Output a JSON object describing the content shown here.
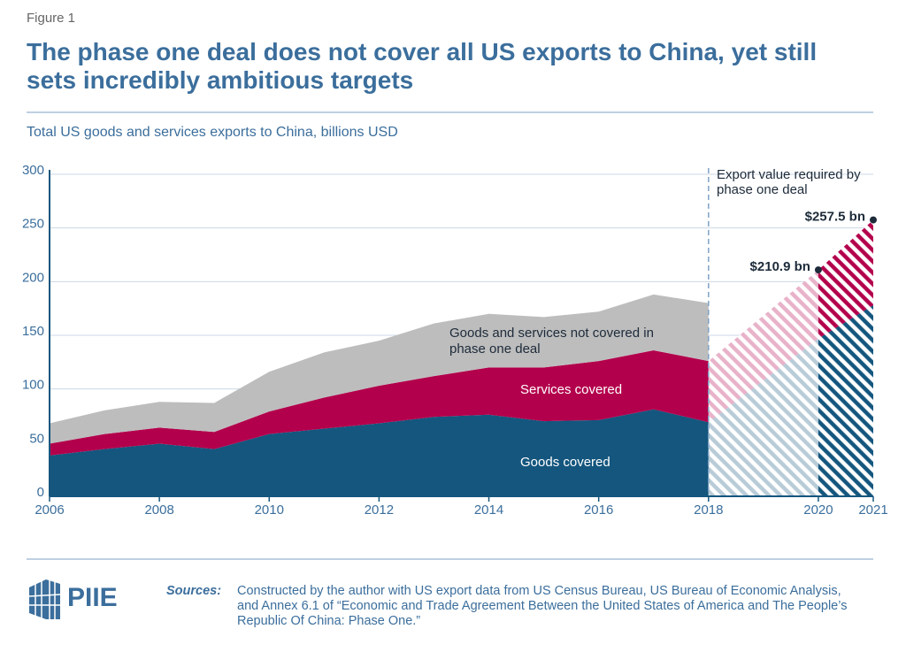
{
  "figure_label": "Figure 1",
  "chart_data": {
    "type": "area",
    "title": "The phase one deal does not cover all US exports to China, yet still sets incredibly ambitious targets",
    "subtitle": "Total US goods and services exports to China, billions USD",
    "x": [
      2006,
      2007,
      2008,
      2009,
      2010,
      2011,
      2012,
      2013,
      2014,
      2015,
      2016,
      2017,
      2018
    ],
    "series": [
      {
        "name": "Goods covered",
        "color": "#14567e",
        "values": [
          38,
          44,
          49,
          44,
          58,
          63,
          68,
          74,
          76,
          70,
          71,
          81,
          69
        ]
      },
      {
        "name": "Services covered",
        "color": "#b3004c",
        "values": [
          11,
          14,
          15,
          16,
          21,
          29,
          35,
          38,
          44,
          50,
          55,
          55,
          57
        ]
      },
      {
        "name": "Goods and services not covered in phase one deal",
        "color": "#bdbdbd",
        "values": [
          19,
          22,
          24,
          27,
          37,
          42,
          42,
          49,
          50,
          47,
          46,
          52,
          54
        ]
      }
    ],
    "projection": {
      "label": "Export value required by phase one deal",
      "x": [
        2018,
        2020,
        2021
      ],
      "series": [
        {
          "color": "#14567e",
          "values": [
            69,
            147,
            178
          ]
        },
        {
          "color": "#b3004c",
          "values": [
            57,
            63.9,
            79.5
          ]
        }
      ],
      "totals": {
        "x": [
          2020,
          2021
        ],
        "values": [
          210.9,
          257.5
        ],
        "value_labels": [
          "$210.9 bn",
          "$257.5 bn"
        ]
      }
    },
    "xlim": [
      2006,
      2021
    ],
    "ylim": [
      0,
      300
    ],
    "xticks": [
      2006,
      2008,
      2010,
      2012,
      2014,
      2016,
      2018,
      2020,
      2021
    ],
    "yticks": [
      0,
      50,
      100,
      150,
      200,
      250,
      300
    ],
    "grid": true
  },
  "logo": "PIIE",
  "sources_label": "Sources:",
  "sources": "Constructed by the author with US export data from US Census Bureau, US Bureau of Economic Analysis, and Annex 6.1 of “Economic and Trade Agreement Between the United States of America and The People’s Republic Of China: Phase One.”"
}
